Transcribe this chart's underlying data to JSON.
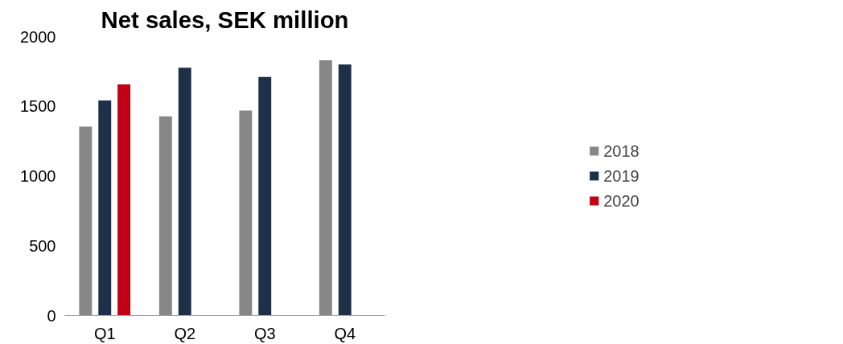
{
  "chart_data": {
    "type": "bar",
    "title": "Net sales, SEK million",
    "categories": [
      "Q1",
      "Q2",
      "Q3",
      "Q4"
    ],
    "series": [
      {
        "name": "2018",
        "color": "#878787",
        "values": [
          1355,
          1428,
          1470,
          1830
        ]
      },
      {
        "name": "2019",
        "color": "#1e3048",
        "values": [
          1542,
          1777,
          1711,
          1800
        ]
      },
      {
        "name": "2020",
        "color": "#c00015",
        "values": [
          1657,
          null,
          null,
          null
        ]
      }
    ],
    "ylim": [
      0,
      2000
    ],
    "yticks": [
      0,
      500,
      1000,
      1500,
      2000
    ],
    "grid": false,
    "legend": "right"
  }
}
